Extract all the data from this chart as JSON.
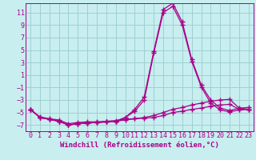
{
  "background_color": "#c8eef0",
  "grid_color": "#99cccc",
  "line_color": "#aa0088",
  "xlim": [
    -0.5,
    23.5
  ],
  "ylim": [
    -8,
    12.5
  ],
  "xticks": [
    0,
    1,
    2,
    3,
    4,
    5,
    6,
    7,
    8,
    9,
    10,
    11,
    12,
    13,
    14,
    15,
    16,
    17,
    18,
    19,
    20,
    21,
    22,
    23
  ],
  "yticks": [
    -7,
    -5,
    -3,
    -1,
    1,
    3,
    5,
    7,
    9,
    11
  ],
  "lines": [
    {
      "x": [
        0,
        1,
        2,
        3,
        4,
        5,
        6,
        7,
        8,
        9,
        10,
        11,
        12,
        13,
        14,
        15,
        16,
        17,
        18,
        19,
        20,
        21,
        22,
        23
      ],
      "y": [
        -4.5,
        -5.7,
        -6.0,
        -6.2,
        -6.8,
        -6.6,
        -6.5,
        -6.5,
        -6.4,
        -6.3,
        -6.1,
        -6.0,
        -5.9,
        -5.8,
        -5.5,
        -5.0,
        -4.8,
        -4.5,
        -4.3,
        -4.0,
        -3.8,
        -3.7,
        -4.5,
        -4.5
      ]
    },
    {
      "x": [
        0,
        1,
        2,
        3,
        4,
        5,
        6,
        7,
        8,
        9,
        10,
        11,
        12,
        13,
        14,
        15,
        16,
        17,
        18,
        19,
        20,
        21,
        22,
        23
      ],
      "y": [
        -4.5,
        -5.8,
        -6.1,
        -6.4,
        -7.0,
        -6.8,
        -6.7,
        -6.6,
        -6.5,
        -6.4,
        -6.2,
        -6.0,
        -5.8,
        -5.5,
        -5.0,
        -4.5,
        -4.2,
        -3.8,
        -3.5,
        -3.2,
        -3.0,
        -2.9,
        -4.3,
        -4.5
      ]
    },
    {
      "x": [
        0,
        1,
        2,
        3,
        4,
        5,
        6,
        7,
        8,
        9,
        10,
        11,
        12,
        13,
        14,
        15,
        16,
        17,
        18,
        19,
        20,
        21,
        22,
        23
      ],
      "y": [
        -4.5,
        -5.8,
        -6.1,
        -6.4,
        -7.0,
        -6.8,
        -6.7,
        -6.6,
        -6.5,
        -6.4,
        -5.8,
        -4.8,
        -3.0,
        4.5,
        11.0,
        12.0,
        9.0,
        3.2,
        -0.9,
        -3.5,
        -4.6,
        -4.9,
        -4.6,
        -4.5
      ]
    },
    {
      "x": [
        0,
        1,
        2,
        3,
        4,
        5,
        6,
        7,
        8,
        9,
        10,
        11,
        12,
        13,
        14,
        15,
        16,
        17,
        18,
        19,
        20,
        21,
        22,
        23
      ],
      "y": [
        -4.5,
        -5.8,
        -6.1,
        -6.4,
        -7.0,
        -6.8,
        -6.7,
        -6.6,
        -6.5,
        -6.4,
        -5.8,
        -4.5,
        -2.5,
        4.8,
        11.5,
        12.5,
        9.5,
        3.5,
        -0.6,
        -3.0,
        -4.3,
        -4.7,
        -4.3,
        -4.2
      ]
    }
  ],
  "marker": "+",
  "markersize": 4,
  "linewidth": 0.9,
  "xlabel": "Windchill (Refroidissement éolien,°C)",
  "xlabel_fontsize": 6.5,
  "tick_fontsize": 6
}
